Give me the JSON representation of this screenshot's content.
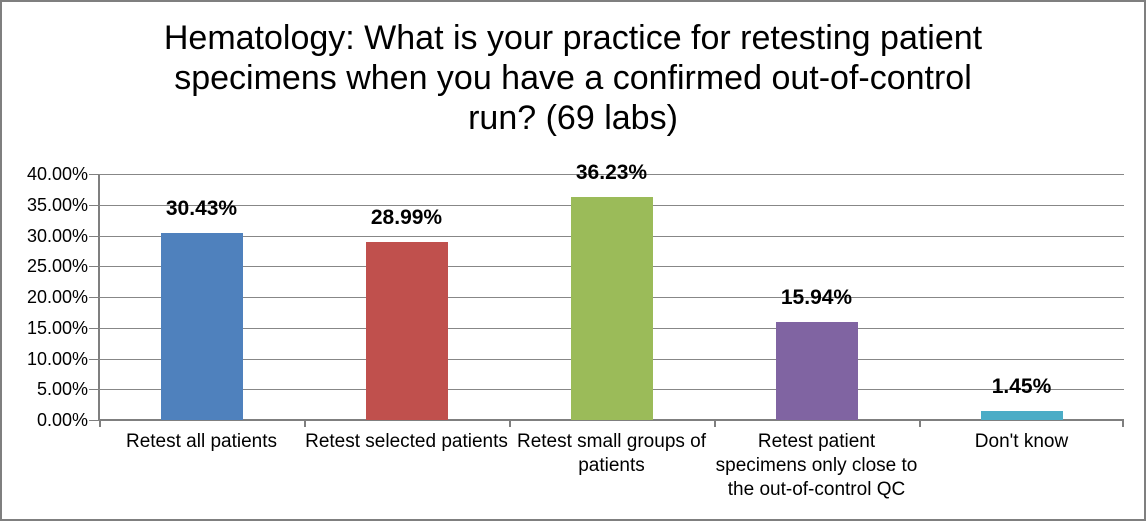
{
  "window": {
    "background": "#FFFFFF",
    "border_color": "#7F7F7F"
  },
  "chart_data": {
    "type": "bar",
    "title": "Hematology: What is your practice for retesting patient specimens when you have a confirmed out-of-control run? (69 labs)",
    "title_lines": [
      "Hematology: What is your practice for retesting patient",
      "specimens when you have a confirmed out-of-control",
      "run? (69 labs)"
    ],
    "categories": [
      "Retest all patients",
      "Retest selected patients",
      "Retest small groups of patients",
      "Retest patient specimens only close to the out-of-control QC",
      "Don't know"
    ],
    "category_lines": [
      [
        "Retest all patients"
      ],
      [
        "Retest selected patients"
      ],
      [
        "Retest small groups of",
        "patients"
      ],
      [
        "Retest patient",
        "specimens only close to",
        "the out-of-control QC"
      ],
      [
        "Don't know"
      ]
    ],
    "values": [
      30.43,
      28.99,
      36.23,
      15.94,
      1.45
    ],
    "data_labels": [
      "30.43%",
      "28.99%",
      "36.23%",
      "15.94%",
      "1.45%"
    ],
    "bar_colors": [
      "#4F81BD",
      "#C0504D",
      "#9BBB59",
      "#8064A2",
      "#4BACC6"
    ],
    "ylim": [
      0,
      40
    ],
    "y_tick_step": 5,
    "y_tick_labels": [
      "40.00%",
      "35.00%",
      "30.00%",
      "25.00%",
      "20.00%",
      "15.00%",
      "10.00%",
      "5.00%",
      "0.00%"
    ],
    "xlabel": "",
    "ylabel": "",
    "grid": "horizontal",
    "legend": "none",
    "gridline_color": "#878787",
    "axis_color": "#7F7F7F",
    "text_color": "#000000"
  }
}
